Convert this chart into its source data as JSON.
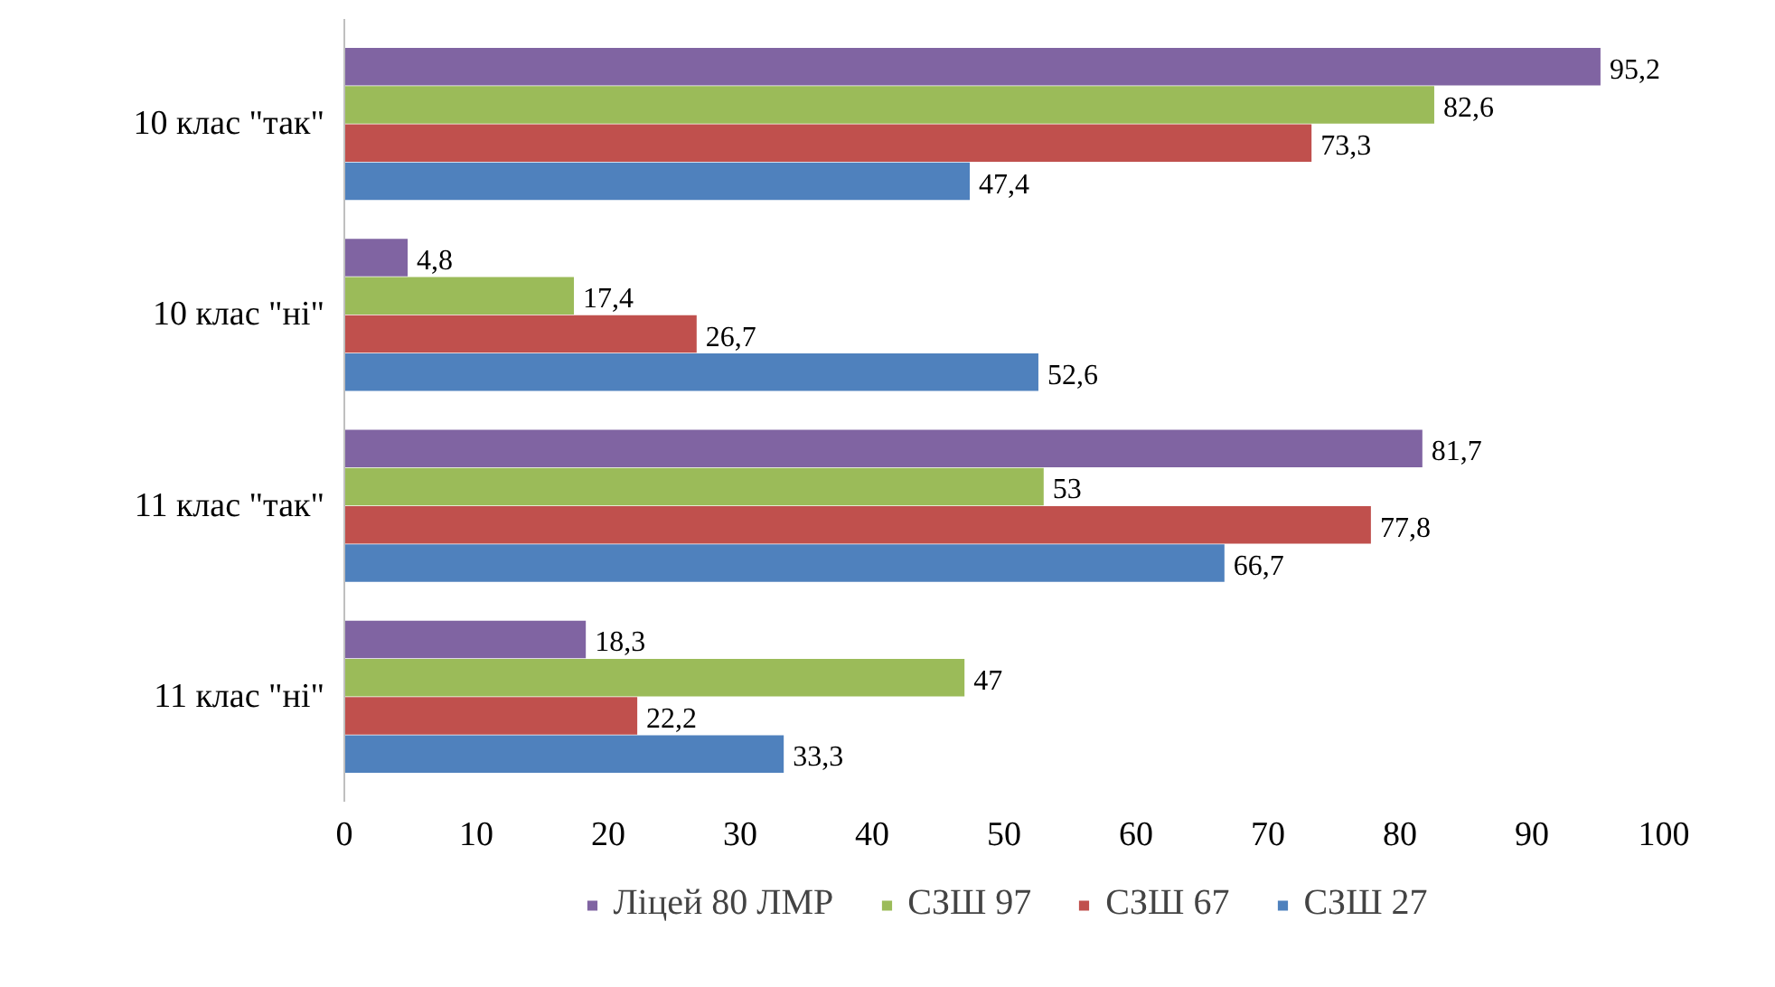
{
  "chart_data": {
    "type": "bar",
    "orientation": "horizontal",
    "categories": [
      "10 клас \"так\"",
      "10 клас \"ні\"",
      "11 клас \"так\"",
      "11 клас \"ні\""
    ],
    "series": [
      {
        "name": "Ліцей 80 ЛМР",
        "color": "#8064a2",
        "values": [
          95.2,
          4.8,
          81.7,
          18.3
        ],
        "value_labels": [
          "95,2",
          "4,8",
          "81,7",
          "18,3"
        ]
      },
      {
        "name": "СЗШ 97",
        "color": "#9bbb59",
        "values": [
          82.6,
          17.4,
          53,
          47
        ],
        "value_labels": [
          "82,6",
          "17,4",
          "53",
          "47"
        ]
      },
      {
        "name": "СЗШ 67",
        "color": "#c0504d",
        "values": [
          73.3,
          26.7,
          77.8,
          22.2
        ],
        "value_labels": [
          "73,3",
          "26,7",
          "77,8",
          "22,2"
        ]
      },
      {
        "name": "СЗШ 27",
        "color": "#4f81bd",
        "values": [
          47.4,
          52.6,
          66.7,
          33.3
        ],
        "value_labels": [
          "47,4",
          "52,6",
          "66,7",
          "33,3"
        ]
      }
    ],
    "xlim": [
      0,
      100
    ],
    "xticks": [
      0,
      10,
      20,
      30,
      40,
      50,
      60,
      70,
      80,
      90,
      100
    ],
    "grid": false,
    "legend": "bottom"
  }
}
